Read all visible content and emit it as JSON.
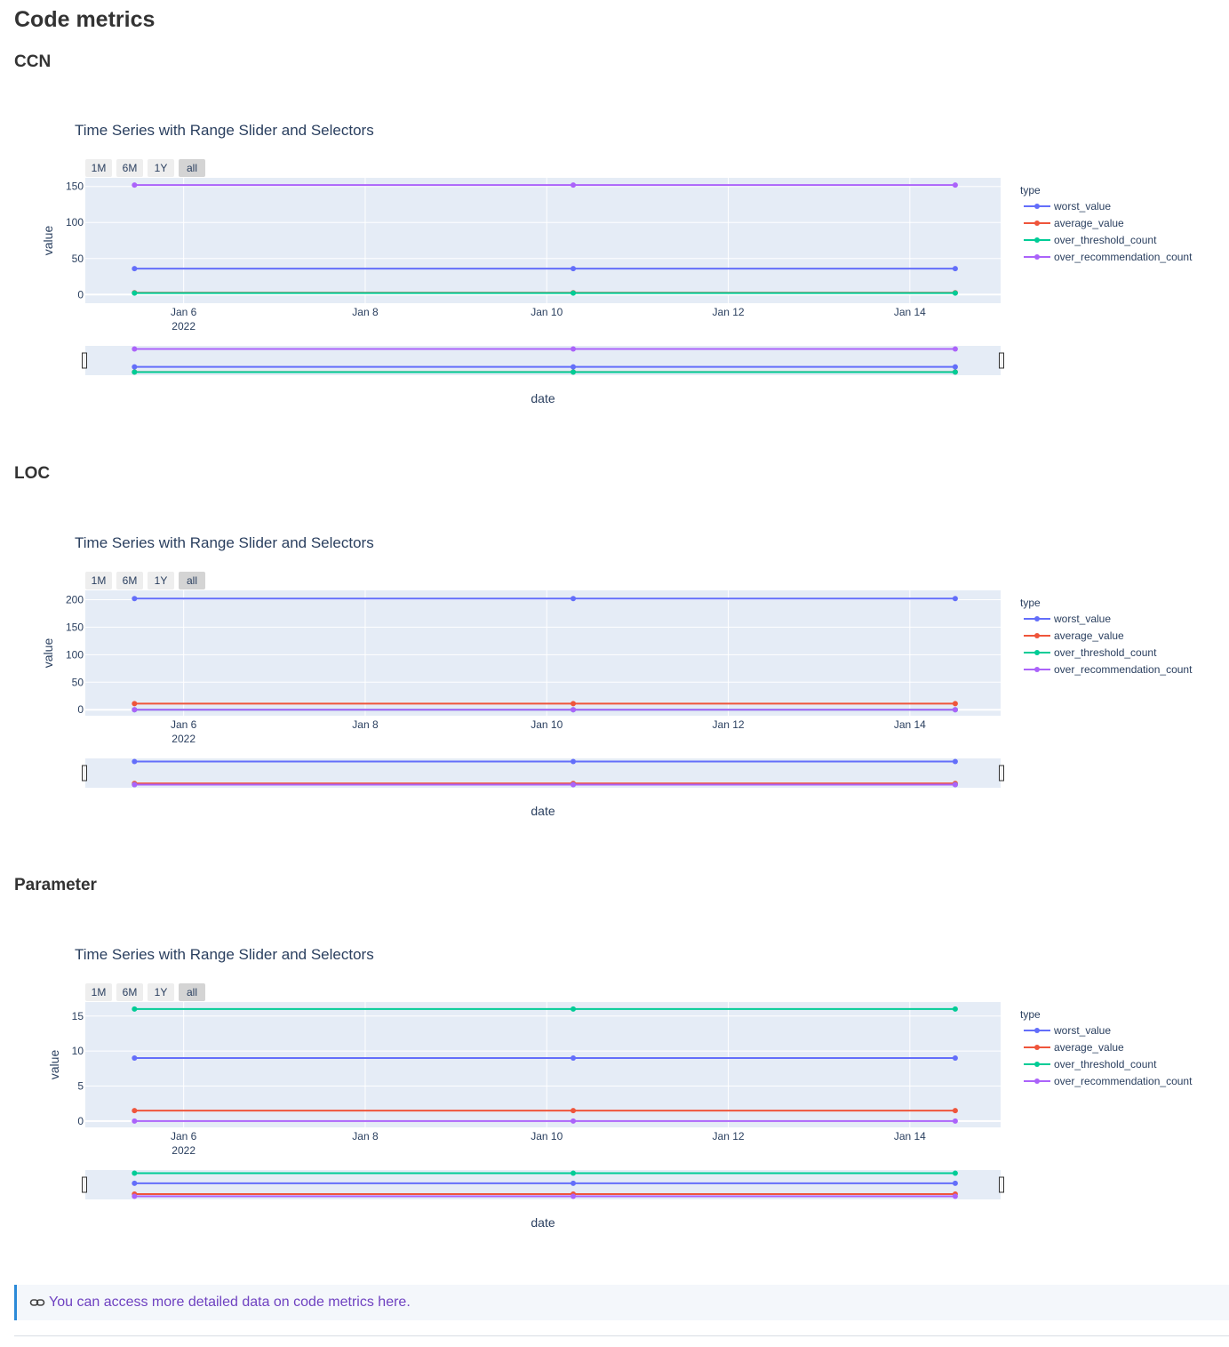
{
  "page": {
    "title": "Code metrics",
    "sections": [
      "CCN",
      "LOC",
      "Parameter"
    ],
    "info_link": "You can access more detailed data on code metrics here.",
    "info_icon": "link-icon"
  },
  "colors": {
    "worst_value": "#636efa",
    "average_value": "#ef553b",
    "over_threshold_count": "#00cc96",
    "over_recommendation_count": "#ab63fa",
    "plot_bg": "#e5ecf6",
    "text": "#2a3f5f"
  },
  "range_buttons": [
    "1M",
    "6M",
    "1Y",
    "all"
  ],
  "active_range_button": "all",
  "chart_data": [
    {
      "type": "line",
      "section": "CCN",
      "title": "Time Series with Range Slider and Selectors",
      "xlabel": "date",
      "ylabel": "value",
      "legend_title": "type",
      "x": [
        "2022-01-05 11:00",
        "2022-01-10 07:00",
        "2022-01-14 12:00"
      ],
      "xlim": [
        "2022-01-04 22:00",
        "2022-01-15 00:00"
      ],
      "x_ticks": [
        "Jan 6",
        "Jan 8",
        "Jan 10",
        "Jan 12",
        "Jan 14"
      ],
      "x_tick_year": "2022",
      "ylim": [
        -12,
        162
      ],
      "y_ticks": [
        0,
        50,
        100,
        150
      ],
      "series": [
        {
          "name": "worst_value",
          "values": [
            36,
            36,
            36
          ]
        },
        {
          "name": "average_value",
          "values": [
            2.5,
            2.5,
            2.5
          ]
        },
        {
          "name": "over_threshold_count",
          "values": [
            2,
            2,
            2
          ]
        },
        {
          "name": "over_recommendation_count",
          "values": [
            152,
            152,
            152
          ]
        }
      ]
    },
    {
      "type": "line",
      "section": "LOC",
      "title": "Time Series with Range Slider and Selectors",
      "xlabel": "date",
      "ylabel": "value",
      "legend_title": "type",
      "x": [
        "2022-01-05 11:00",
        "2022-01-10 07:00",
        "2022-01-14 12:00"
      ],
      "xlim": [
        "2022-01-04 22:00",
        "2022-01-15 00:00"
      ],
      "x_ticks": [
        "Jan 6",
        "Jan 8",
        "Jan 10",
        "Jan 12",
        "Jan 14"
      ],
      "x_tick_year": "2022",
      "ylim": [
        -11,
        217
      ],
      "y_ticks": [
        0,
        50,
        100,
        150,
        200
      ],
      "series": [
        {
          "name": "worst_value",
          "values": [
            202,
            202,
            202
          ]
        },
        {
          "name": "average_value",
          "values": [
            11,
            11,
            11
          ]
        },
        {
          "name": "over_threshold_count",
          "values": [
            0,
            0,
            0
          ]
        },
        {
          "name": "over_recommendation_count",
          "values": [
            0,
            0,
            0
          ]
        }
      ]
    },
    {
      "type": "line",
      "section": "Parameter",
      "title": "Time Series with Range Slider and Selectors",
      "xlabel": "date",
      "ylabel": "value",
      "legend_title": "type",
      "x": [
        "2022-01-05 11:00",
        "2022-01-10 07:00",
        "2022-01-14 12:00"
      ],
      "xlim": [
        "2022-01-04 22:00",
        "2022-01-15 00:00"
      ],
      "x_ticks": [
        "Jan 6",
        "Jan 8",
        "Jan 10",
        "Jan 12",
        "Jan 14"
      ],
      "x_tick_year": "2022",
      "ylim": [
        -0.9,
        17
      ],
      "y_ticks": [
        0,
        5,
        10,
        15
      ],
      "series": [
        {
          "name": "worst_value",
          "values": [
            9,
            9,
            9
          ]
        },
        {
          "name": "average_value",
          "values": [
            1.5,
            1.5,
            1.5
          ]
        },
        {
          "name": "over_threshold_count",
          "values": [
            16,
            16,
            16
          ]
        },
        {
          "name": "over_recommendation_count",
          "values": [
            0,
            0,
            0
          ]
        }
      ]
    }
  ]
}
